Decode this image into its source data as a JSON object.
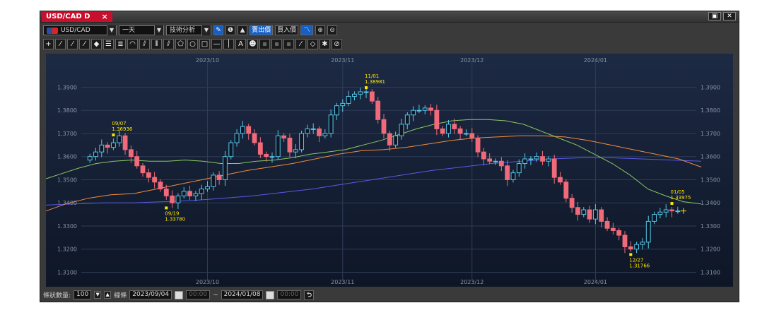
{
  "window": {
    "tab_title": "USD/CAD D",
    "tab_close": "×",
    "restore_glyph": "▣",
    "close_glyph": "✕"
  },
  "toolbar": {
    "symbol": "USD/CAD",
    "timeframe": "一天",
    "analysis": "技術分析",
    "info_glyph": "❶",
    "mountain_glyph": "▲",
    "sell_price": "賣出價",
    "buy_price": "買入價",
    "zoom_in": "⊕",
    "zoom_out": "⊖"
  },
  "bottom": {
    "bar_count_label": "條狀數量:",
    "bar_count": "100",
    "line_label": "線條",
    "start_date": "2023/09/04",
    "start_time": "00:00",
    "separator": "~",
    "end_date": "2024/01/08",
    "end_time": "00:00",
    "refresh_glyph": "⮌"
  },
  "chart_data": {
    "type": "candlestick",
    "ylim": [
      1.308,
      1.399
    ],
    "yticks": [
      "1.3100",
      "1.3200",
      "1.3300",
      "1.3400",
      "1.3500",
      "1.3600",
      "1.3700",
      "1.3800",
      "1.3900"
    ],
    "xticks": [
      "2023/10",
      "2023/11",
      "2023/12",
      "2024/01"
    ],
    "grid": true,
    "colors": {
      "up": "#55c7e6",
      "down": "#f06a7a",
      "ma_short": "#8bc862",
      "ma_mid": "#f08c3c",
      "ma_long": "#5a5ae6"
    },
    "annotations": [
      {
        "date": "09/07",
        "value": "1.36936"
      },
      {
        "date": "09/19",
        "value": "1.33780"
      },
      {
        "date": "11/01",
        "value": "1.38981"
      },
      {
        "date": "12/27",
        "value": "1.31766"
      },
      {
        "date": "01/05",
        "value": "1.33975"
      }
    ],
    "closes": [
      1.36,
      1.362,
      1.365,
      1.364,
      1.366,
      1.369,
      1.363,
      1.36,
      1.356,
      1.353,
      1.351,
      1.349,
      1.346,
      1.343,
      1.34,
      1.343,
      1.345,
      1.343,
      1.344,
      1.346,
      1.347,
      1.352,
      1.35,
      1.36,
      1.366,
      1.37,
      1.373,
      1.37,
      1.366,
      1.361,
      1.36,
      1.36,
      1.369,
      1.368,
      1.362,
      1.363,
      1.37,
      1.372,
      1.372,
      1.369,
      1.37,
      1.378,
      1.382,
      1.383,
      1.386,
      1.387,
      1.388,
      1.388,
      1.384,
      1.376,
      1.37,
      1.365,
      1.369,
      1.374,
      1.378,
      1.38,
      1.38,
      1.381,
      1.38,
      1.372,
      1.37,
      1.374,
      1.372,
      1.37,
      1.37,
      1.368,
      1.362,
      1.359,
      1.358,
      1.358,
      1.356,
      1.35,
      1.353,
      1.357,
      1.359,
      1.359,
      1.36,
      1.358,
      1.359,
      1.351,
      1.349,
      1.342,
      1.338,
      1.335,
      1.337,
      1.333,
      1.337,
      1.332,
      1.329,
      1.328,
      1.326,
      1.321,
      1.32,
      1.322,
      1.323,
      1.332,
      1.335,
      1.336,
      1.337,
      1.3365,
      1.3365
    ],
    "ma_short": [
      1.35,
      1.3525,
      1.355,
      1.357,
      1.358,
      1.3585,
      1.358,
      1.358,
      1.3585,
      1.358,
      1.357,
      1.357,
      1.358,
      1.3585,
      1.3595,
      1.361,
      1.362,
      1.363,
      1.365,
      1.367,
      1.3695,
      1.372,
      1.374,
      1.3755,
      1.376,
      1.376,
      1.3755,
      1.374,
      1.371,
      1.368,
      1.365,
      1.361,
      1.357,
      1.352,
      1.346,
      1.343,
      1.3405,
      1.3395
    ],
    "ma_mid": [
      1.336,
      1.3395,
      1.342,
      1.3435,
      1.344,
      1.346,
      1.348,
      1.35,
      1.352,
      1.354,
      1.3555,
      1.357,
      1.359,
      1.361,
      1.3625,
      1.363,
      1.364,
      1.3655,
      1.367,
      1.368,
      1.3685,
      1.369,
      1.369,
      1.3685,
      1.367,
      1.365,
      1.363,
      1.361,
      1.359,
      1.3555
    ],
    "ma_long": [
      1.339,
      1.3395,
      1.34,
      1.34,
      1.3405,
      1.341,
      1.342,
      1.343,
      1.3445,
      1.346,
      1.348,
      1.35,
      1.352,
      1.354,
      1.3555,
      1.357,
      1.358,
      1.359,
      1.3595,
      1.3595,
      1.359,
      1.3585,
      1.358
    ]
  }
}
